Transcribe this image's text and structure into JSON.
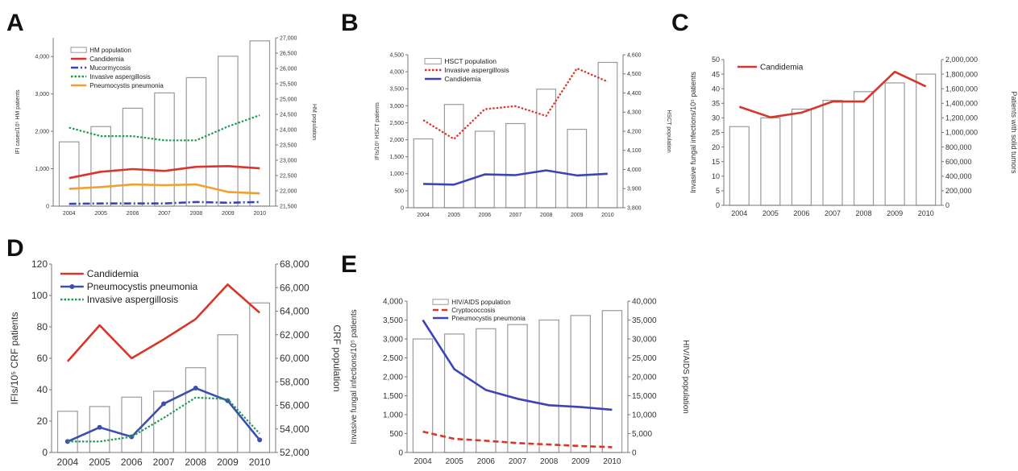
{
  "colors": {
    "bar_fill": "#ffffff",
    "bar_stroke": "#9a9a9a",
    "candidemia": "#d9352a",
    "mucormycosis": "#3c45b8",
    "aspergillosis": "#1f9a55",
    "pneumocystis_a": "#f0a030",
    "pneumocystis_blue": "#3a4fb0",
    "cryptococcosis": "#d9352a"
  },
  "chart_data": [
    {
      "panel": "A",
      "type": "bar+line",
      "categories": [
        "2004",
        "2005",
        "2006",
        "2007",
        "2008",
        "2009",
        "2010"
      ],
      "bars": {
        "name": "HM population",
        "values": [
          23600,
          24100,
          24700,
          25200,
          25700,
          26400,
          26900
        ]
      },
      "series": [
        {
          "name": "Candidemia",
          "style": "solid",
          "color": "#d9352a",
          "values": [
            750,
            920,
            990,
            940,
            1050,
            1070,
            1010
          ]
        },
        {
          "name": "Mucormycosis",
          "style": "dashdot",
          "color": "#3c45b8",
          "values": [
            60,
            70,
            70,
            70,
            110,
            90,
            110
          ]
        },
        {
          "name": "Invasive aspergillosis",
          "style": "dotted",
          "color": "#1f9a55",
          "values": [
            2100,
            1870,
            1870,
            1760,
            1760,
            2130,
            2430
          ]
        },
        {
          "name": "Pneumocystis pneumonia",
          "style": "solid",
          "color": "#f0a030",
          "values": [
            460,
            510,
            580,
            560,
            580,
            380,
            340
          ]
        }
      ],
      "ylabel": "IFI cases/10⁵ HM patients",
      "y2label": "HM population",
      "ylim": [
        0,
        4500
      ],
      "yticks": [
        0,
        1000,
        2000,
        3000,
        4000
      ],
      "ytick_labels": [
        "0",
        "1,000",
        "2,000",
        "3,000",
        "4,000"
      ],
      "y2lim": [
        21500,
        27000
      ],
      "y2ticks": [
        21500,
        22000,
        22500,
        23000,
        23500,
        24000,
        24500,
        25000,
        25500,
        26000,
        26500,
        27000
      ],
      "y2tick_labels": [
        "21,500",
        "22,000",
        "22,500",
        "23,000",
        "23,500",
        "24,000",
        "24,500",
        "25,000",
        "25,500",
        "26,000",
        "26,500",
        "27,000"
      ]
    },
    {
      "panel": "B",
      "type": "bar+line",
      "categories": [
        "2004",
        "2005",
        "2006",
        "2007",
        "2008",
        "2009",
        "2010"
      ],
      "bars": {
        "name": "HSCT population",
        "values": [
          4160,
          4340,
          4200,
          4240,
          4420,
          4210,
          4560
        ]
      },
      "series": [
        {
          "name": "Invasive aspergillosis",
          "style": "dotted",
          "color": "#d9352a",
          "values": [
            2580,
            2020,
            2900,
            2990,
            2700,
            4100,
            3710
          ]
        },
        {
          "name": "Candidemia",
          "style": "solid",
          "color": "#3c45b8",
          "values": [
            700,
            680,
            980,
            960,
            1100,
            950,
            1000
          ]
        }
      ],
      "ylabel": "IFIs/10⁵ HSCT patients",
      "y2label": "HSCT population",
      "ylim": [
        0,
        4500
      ],
      "yticks": [
        0,
        500,
        1000,
        1500,
        2000,
        2500,
        3000,
        3500,
        4000,
        4500
      ],
      "ytick_labels": [
        "0",
        "500",
        "1,000",
        "1,500",
        "2,000",
        "2,500",
        "3,000",
        "3,500",
        "4,000",
        "4,500"
      ],
      "y2lim": [
        3800,
        4600
      ],
      "y2ticks": [
        3800,
        3900,
        4000,
        4100,
        4200,
        4300,
        4400,
        4500,
        4600
      ],
      "y2tick_labels": [
        "3,800",
        "3,900",
        "4,000",
        "4,100",
        "4,200",
        "4,300",
        "4,400",
        "4,500",
        "4,600"
      ]
    },
    {
      "panel": "C",
      "type": "bar+line",
      "categories": [
        "2004",
        "2005",
        "2006",
        "2007",
        "2008",
        "2009",
        "2010"
      ],
      "bars": {
        "name": "Patients with solid tumors",
        "values": [
          1080000,
          1200000,
          1320000,
          1440000,
          1560000,
          1680000,
          1800000
        ]
      },
      "series": [
        {
          "name": "Candidemia",
          "style": "solid",
          "color": "#d9352a",
          "values": [
            33.8,
            30.2,
            31.8,
            35.6,
            35.6,
            45.8,
            40.8
          ]
        }
      ],
      "ylabel": "Invasive fungal infections/10⁵ patients",
      "y2label": "Patients with solid tumors",
      "ylim": [
        0,
        50
      ],
      "yticks": [
        0,
        5,
        10,
        15,
        20,
        25,
        30,
        35,
        40,
        45,
        50
      ],
      "ytick_labels": [
        "0",
        "5",
        "10",
        "15",
        "20",
        "25",
        "30",
        "35",
        "40",
        "45",
        "50"
      ],
      "y2lim": [
        0,
        2000000
      ],
      "y2ticks": [
        0,
        200000,
        400000,
        600000,
        800000,
        1000000,
        1200000,
        1400000,
        1600000,
        1800000,
        2000000
      ],
      "y2tick_labels": [
        "0",
        "200,000",
        "400,000",
        "600,000",
        "800,000",
        "1,000,000",
        "1,200,000",
        "1,400,000",
        "1,600,000",
        "1,800,000",
        "2,000,000"
      ]
    },
    {
      "panel": "D",
      "type": "bar+line",
      "categories": [
        "2004",
        "2005",
        "2006",
        "2007",
        "2008",
        "2009",
        "2010"
      ],
      "bars": {
        "name": "CRF population",
        "values": [
          55500,
          55900,
          56700,
          57200,
          59200,
          62000,
          64700
        ]
      },
      "series": [
        {
          "name": "Candidemia",
          "style": "solid",
          "color": "#d9352a",
          "values": [
            58,
            81,
            60,
            72,
            85,
            107,
            89
          ]
        },
        {
          "name": "Pneumocystis pneumonia",
          "style": "solid-marker",
          "color": "#3a4fb0",
          "values": [
            7,
            16,
            10,
            31,
            41,
            33,
            8
          ]
        },
        {
          "name": "Invasive aspergillosis",
          "style": "dotted",
          "color": "#1f9a55",
          "values": [
            7,
            7,
            10,
            22,
            35,
            34,
            12
          ]
        }
      ],
      "ylabel": "IFIs/10⁵ CRF patients",
      "y2label": "CRF population",
      "ylim": [
        0,
        120
      ],
      "yticks": [
        0,
        20,
        40,
        60,
        80,
        100,
        120
      ],
      "ytick_labels": [
        "0",
        "20",
        "40",
        "60",
        "80",
        "100",
        "120"
      ],
      "y2lim": [
        52000,
        68000
      ],
      "y2ticks": [
        52000,
        54000,
        56000,
        58000,
        60000,
        62000,
        64000,
        66000,
        68000
      ],
      "y2tick_labels": [
        "52,000",
        "54,000",
        "56,000",
        "58,000",
        "60,000",
        "62,000",
        "64,000",
        "66,000",
        "68,000"
      ]
    },
    {
      "panel": "E",
      "type": "bar+line",
      "categories": [
        "2004",
        "2005",
        "2006",
        "2007",
        "2008",
        "2009",
        "2010"
      ],
      "bars": {
        "name": "HIV/AIDS population",
        "values": [
          30000,
          31300,
          32700,
          33800,
          35000,
          36200,
          37500
        ]
      },
      "series": [
        {
          "name": "Cryptococcosis",
          "style": "dashed",
          "color": "#d9352a",
          "values": [
            550,
            360,
            310,
            250,
            210,
            170,
            140
          ]
        },
        {
          "name": "Pneumocystis pneumonia",
          "style": "solid",
          "color": "#3c45b8",
          "values": [
            3500,
            2200,
            1650,
            1420,
            1250,
            1200,
            1130
          ]
        }
      ],
      "ylabel": "Invasive fungal infections/10⁵ patients",
      "y2label": "HIV/AIDS population",
      "ylim": [
        0,
        4000
      ],
      "yticks": [
        0,
        500,
        1000,
        1500,
        2000,
        2500,
        3000,
        3500,
        4000
      ],
      "ytick_labels": [
        "0",
        "500",
        "1,000",
        "1,500",
        "2,000",
        "2,500",
        "3,000",
        "3,500",
        "4,000"
      ],
      "y2lim": [
        0,
        40000
      ],
      "y2ticks": [
        0,
        5000,
        10000,
        15000,
        20000,
        25000,
        30000,
        35000,
        40000
      ],
      "y2tick_labels": [
        "0",
        "5,000",
        "10,000",
        "15,000",
        "20,000",
        "25,000",
        "30,000",
        "35,000",
        "40,000"
      ]
    }
  ]
}
